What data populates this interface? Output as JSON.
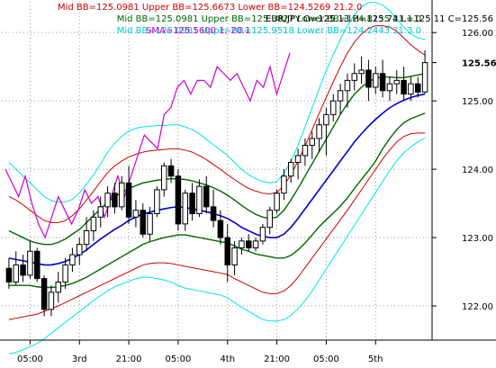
{
  "chart_data": {
    "type": "candlestick",
    "symbol": "EUR/JPY",
    "ohlc_label": "O=125.13 H=125.74 L=125.11 C=125.56",
    "header_lines": [
      {
        "text": "Mid BB=125.0981 Upper BB=125.6673 Lower BB=124.5269  21.2.0",
        "color": "#cc0000",
        "align": "left"
      },
      {
        "text": "Mid BB=125.0981 Upper BB=125.3827 Lower BB=124.8135  21.1.0",
        "color": "#006600",
        "align": "right"
      },
      {
        "text": "Mid BB=125.0981 Upper BB=125.9518 Lower BB=124.2443  21.3.0",
        "color": "#00cccc",
        "align": "right"
      },
      {
        "text": "SMA=125.5600  1,-20.1",
        "color": "#cc00cc",
        "align": "left"
      }
    ],
    "price_labels": [
      "126.00",
      "125.56",
      "125.00",
      "124.00",
      "123.00",
      "122.00"
    ],
    "time_labels": [
      "05:00",
      "3rd",
      "21:00",
      "05:00",
      "4th",
      "21:00",
      "05:00",
      "5th"
    ],
    "ylim": [
      121.5,
      126.45
    ],
    "current_price": 125.56,
    "gridlines": true,
    "colors": {
      "mid": "#0000cc",
      "upper_lower_2": "#cc0000",
      "upper_lower_1": "#006600",
      "upper_lower_3": "#00e5e5",
      "sma": "#cc00cc",
      "candle": "#000000"
    },
    "candles": [
      {
        "o": 122.55,
        "h": 122.7,
        "l": 122.25,
        "c": 122.35
      },
      {
        "o": 122.35,
        "h": 122.8,
        "l": 122.3,
        "c": 122.6
      },
      {
        "o": 122.6,
        "h": 122.75,
        "l": 122.35,
        "c": 122.45
      },
      {
        "o": 122.45,
        "h": 122.95,
        "l": 122.4,
        "c": 122.8
      },
      {
        "o": 122.8,
        "h": 122.85,
        "l": 122.35,
        "c": 122.4
      },
      {
        "o": 122.4,
        "h": 122.45,
        "l": 121.85,
        "c": 121.95
      },
      {
        "o": 121.95,
        "h": 122.3,
        "l": 121.85,
        "c": 122.2
      },
      {
        "o": 122.2,
        "h": 122.5,
        "l": 122.05,
        "c": 122.35
      },
      {
        "o": 122.35,
        "h": 122.7,
        "l": 122.25,
        "c": 122.6
      },
      {
        "o": 122.6,
        "h": 122.85,
        "l": 122.5,
        "c": 122.75
      },
      {
        "o": 122.75,
        "h": 123.0,
        "l": 122.6,
        "c": 122.9
      },
      {
        "o": 122.9,
        "h": 123.3,
        "l": 122.8,
        "c": 123.1
      },
      {
        "o": 123.1,
        "h": 123.4,
        "l": 122.95,
        "c": 123.3
      },
      {
        "o": 123.3,
        "h": 123.6,
        "l": 123.15,
        "c": 123.45
      },
      {
        "o": 123.45,
        "h": 123.75,
        "l": 123.3,
        "c": 123.65
      },
      {
        "o": 123.65,
        "h": 123.8,
        "l": 123.35,
        "c": 123.45
      },
      {
        "o": 123.45,
        "h": 123.9,
        "l": 123.4,
        "c": 123.8
      },
      {
        "o": 123.8,
        "h": 124.05,
        "l": 123.2,
        "c": 123.3
      },
      {
        "o": 123.3,
        "h": 123.55,
        "l": 123.15,
        "c": 123.4
      },
      {
        "o": 123.4,
        "h": 123.5,
        "l": 123.0,
        "c": 123.05
      },
      {
        "o": 123.05,
        "h": 123.45,
        "l": 122.95,
        "c": 123.35
      },
      {
        "o": 123.35,
        "h": 123.75,
        "l": 123.3,
        "c": 123.7
      },
      {
        "o": 123.7,
        "h": 124.1,
        "l": 123.6,
        "c": 124.05
      },
      {
        "o": 124.05,
        "h": 124.15,
        "l": 123.8,
        "c": 123.9
      },
      {
        "o": 123.9,
        "h": 124.0,
        "l": 123.1,
        "c": 123.2
      },
      {
        "o": 123.2,
        "h": 123.7,
        "l": 123.1,
        "c": 123.65
      },
      {
        "o": 123.65,
        "h": 123.8,
        "l": 123.25,
        "c": 123.35
      },
      {
        "o": 123.35,
        "h": 123.85,
        "l": 123.3,
        "c": 123.75
      },
      {
        "o": 123.75,
        "h": 123.9,
        "l": 123.35,
        "c": 123.45
      },
      {
        "o": 123.45,
        "h": 123.7,
        "l": 123.15,
        "c": 123.25
      },
      {
        "o": 123.25,
        "h": 123.4,
        "l": 122.9,
        "c": 123.0
      },
      {
        "o": 123.0,
        "h": 123.2,
        "l": 122.35,
        "c": 122.6
      },
      {
        "o": 122.6,
        "h": 122.95,
        "l": 122.45,
        "c": 122.85
      },
      {
        "o": 122.85,
        "h": 123.0,
        "l": 122.75,
        "c": 122.95
      },
      {
        "o": 122.95,
        "h": 123.05,
        "l": 122.8,
        "c": 122.85
      },
      {
        "o": 122.85,
        "h": 123.0,
        "l": 122.8,
        "c": 122.95
      },
      {
        "o": 122.95,
        "h": 123.2,
        "l": 122.9,
        "c": 123.15
      },
      {
        "o": 123.15,
        "h": 123.45,
        "l": 123.05,
        "c": 123.4
      },
      {
        "o": 123.4,
        "h": 123.7,
        "l": 123.35,
        "c": 123.65
      },
      {
        "o": 123.65,
        "h": 124.0,
        "l": 123.55,
        "c": 123.9
      },
      {
        "o": 123.9,
        "h": 124.15,
        "l": 123.8,
        "c": 124.1
      },
      {
        "o": 124.1,
        "h": 124.3,
        "l": 123.85,
        "c": 124.2
      },
      {
        "o": 124.2,
        "h": 124.45,
        "l": 124.05,
        "c": 124.35
      },
      {
        "o": 124.35,
        "h": 124.55,
        "l": 124.15,
        "c": 124.45
      },
      {
        "o": 124.45,
        "h": 124.75,
        "l": 124.25,
        "c": 124.65
      },
      {
        "o": 124.65,
        "h": 124.9,
        "l": 124.2,
        "c": 124.8
      },
      {
        "o": 124.8,
        "h": 125.1,
        "l": 124.7,
        "c": 125.0
      },
      {
        "o": 125.0,
        "h": 125.25,
        "l": 124.8,
        "c": 125.15
      },
      {
        "o": 125.15,
        "h": 125.4,
        "l": 124.9,
        "c": 125.3
      },
      {
        "o": 125.3,
        "h": 125.55,
        "l": 125.15,
        "c": 125.4
      },
      {
        "o": 125.4,
        "h": 125.65,
        "l": 125.25,
        "c": 125.45
      },
      {
        "o": 125.45,
        "h": 125.6,
        "l": 125.0,
        "c": 125.2
      },
      {
        "o": 125.2,
        "h": 125.5,
        "l": 125.1,
        "c": 125.4
      },
      {
        "o": 125.4,
        "h": 125.6,
        "l": 125.05,
        "c": 125.15
      },
      {
        "o": 125.15,
        "h": 125.35,
        "l": 125.0,
        "c": 125.25
      },
      {
        "o": 125.25,
        "h": 125.45,
        "l": 125.1,
        "c": 125.3
      },
      {
        "o": 125.3,
        "h": 125.5,
        "l": 125.0,
        "c": 125.1
      },
      {
        "o": 125.1,
        "h": 125.35,
        "l": 125.0,
        "c": 125.25
      },
      {
        "o": 125.25,
        "h": 125.35,
        "l": 125.05,
        "c": 125.13
      },
      {
        "o": 125.13,
        "h": 125.74,
        "l": 125.11,
        "c": 125.56
      }
    ],
    "mid": [
      122.7,
      122.68,
      122.66,
      122.64,
      122.62,
      122.6,
      122.6,
      122.62,
      122.65,
      122.7,
      122.75,
      122.82,
      122.9,
      122.98,
      123.05,
      123.12,
      123.18,
      123.25,
      123.3,
      123.35,
      123.37,
      123.4,
      123.42,
      123.44,
      123.45,
      123.44,
      123.42,
      123.4,
      123.38,
      123.35,
      123.32,
      123.28,
      123.22,
      123.15,
      123.1,
      123.05,
      123.02,
      123.0,
      123.0,
      123.05,
      123.15,
      123.28,
      123.42,
      123.56,
      123.7,
      123.84,
      123.98,
      124.12,
      124.26,
      124.4,
      124.52,
      124.63,
      124.73,
      124.82,
      124.9,
      124.96,
      125.01,
      125.05,
      125.08,
      125.1
    ],
    "upper1": [
      123.1,
      123.05,
      123.0,
      122.95,
      122.92,
      122.9,
      122.9,
      122.93,
      122.98,
      123.05,
      123.12,
      123.22,
      123.32,
      123.42,
      123.52,
      123.6,
      123.66,
      123.72,
      123.76,
      123.8,
      123.82,
      123.84,
      123.85,
      123.86,
      123.86,
      123.85,
      123.83,
      123.8,
      123.77,
      123.73,
      123.68,
      123.62,
      123.55,
      123.47,
      123.4,
      123.34,
      123.3,
      123.28,
      123.3,
      123.4,
      123.55,
      123.72,
      123.9,
      124.08,
      124.26,
      124.44,
      124.62,
      124.8,
      124.96,
      125.1,
      125.2,
      125.28,
      125.33,
      125.35,
      125.35,
      125.34,
      125.34,
      125.36,
      125.38,
      125.4
    ],
    "lower1": [
      122.3,
      122.3,
      122.3,
      122.3,
      122.28,
      122.27,
      122.27,
      122.28,
      122.3,
      122.33,
      122.37,
      122.42,
      122.48,
      122.54,
      122.6,
      122.66,
      122.72,
      122.78,
      122.84,
      122.9,
      122.94,
      122.97,
      123.0,
      123.02,
      123.04,
      123.04,
      123.02,
      123.0,
      122.98,
      122.96,
      122.94,
      122.92,
      122.88,
      122.83,
      122.8,
      122.76,
      122.74,
      122.72,
      122.7,
      122.7,
      122.74,
      122.82,
      122.92,
      123.04,
      123.16,
      123.26,
      123.36,
      123.46,
      123.58,
      123.72,
      123.85,
      123.98,
      124.12,
      124.3,
      124.45,
      124.58,
      124.68,
      124.74,
      124.78,
      124.82
    ],
    "upper2": [
      123.6,
      123.55,
      123.48,
      123.4,
      123.32,
      123.25,
      123.22,
      123.22,
      123.25,
      123.32,
      123.42,
      123.55,
      123.68,
      123.82,
      123.95,
      124.05,
      124.12,
      124.18,
      124.22,
      124.25,
      124.27,
      124.28,
      124.29,
      124.3,
      124.3,
      124.28,
      124.25,
      124.2,
      124.14,
      124.07,
      124.0,
      123.92,
      123.85,
      123.78,
      123.72,
      123.68,
      123.65,
      123.64,
      123.66,
      123.76,
      123.92,
      124.12,
      124.34,
      124.58,
      124.82,
      125.05,
      125.28,
      125.5,
      125.7,
      125.86,
      125.98,
      126.06,
      126.1,
      126.1,
      126.08,
      126.02,
      125.92,
      125.82,
      125.74,
      125.67
    ],
    "lower2": [
      121.8,
      121.82,
      121.84,
      121.86,
      121.88,
      121.92,
      121.96,
      122.0,
      122.05,
      122.1,
      122.15,
      122.2,
      122.25,
      122.3,
      122.35,
      122.4,
      122.45,
      122.5,
      122.55,
      122.6,
      122.62,
      122.63,
      122.63,
      122.62,
      122.6,
      122.58,
      122.56,
      122.54,
      122.52,
      122.5,
      122.48,
      122.46,
      122.4,
      122.35,
      122.3,
      122.25,
      122.2,
      122.18,
      122.18,
      122.22,
      122.3,
      122.42,
      122.56,
      122.7,
      122.84,
      122.98,
      123.12,
      123.26,
      123.4,
      123.55,
      123.7,
      123.85,
      124.0,
      124.15,
      124.28,
      124.4,
      124.48,
      124.52,
      124.53,
      124.53
    ],
    "upper3": [
      124.1,
      124.0,
      123.9,
      123.8,
      123.7,
      123.6,
      123.54,
      123.52,
      123.52,
      123.56,
      123.65,
      123.78,
      123.92,
      124.08,
      124.25,
      124.38,
      124.48,
      124.56,
      124.6,
      124.62,
      124.63,
      124.64,
      124.64,
      124.65,
      124.65,
      124.62,
      124.58,
      124.52,
      124.44,
      124.36,
      124.28,
      124.2,
      124.1,
      124.0,
      123.92,
      123.86,
      123.82,
      123.8,
      123.82,
      123.94,
      124.12,
      124.35,
      124.62,
      124.9,
      125.18,
      125.44,
      125.68,
      125.9,
      126.1,
      126.26,
      126.38,
      126.44,
      126.44,
      126.4,
      126.32,
      126.2,
      126.08,
      125.98,
      125.92,
      125.9
    ],
    "lower3": [
      121.3,
      121.32,
      121.36,
      121.4,
      121.45,
      121.52,
      121.6,
      121.68,
      121.76,
      121.84,
      121.92,
      122.0,
      122.08,
      122.15,
      122.22,
      122.28,
      122.32,
      122.36,
      122.4,
      122.42,
      122.42,
      122.4,
      122.38,
      122.35,
      122.3,
      122.26,
      122.24,
      122.22,
      122.2,
      122.18,
      122.16,
      122.12,
      122.05,
      121.98,
      121.92,
      121.86,
      121.8,
      121.78,
      121.78,
      121.8,
      121.86,
      121.96,
      122.08,
      122.22,
      122.38,
      122.54,
      122.7,
      122.86,
      123.02,
      123.18,
      123.34,
      123.5,
      123.66,
      123.82,
      123.98,
      124.12,
      124.24,
      124.33,
      124.4,
      124.46
    ],
    "sma_points": [
      [
        0,
        124.0
      ],
      [
        1,
        123.8
      ],
      [
        2,
        123.6
      ],
      [
        3,
        123.9
      ],
      [
        4,
        123.5
      ],
      [
        5,
        123.2
      ],
      [
        6,
        123.0
      ],
      [
        7,
        123.3
      ],
      [
        8,
        123.6
      ],
      [
        9,
        123.4
      ],
      [
        10,
        123.2
      ],
      [
        11,
        123.4
      ],
      [
        12,
        123.7
      ],
      [
        13,
        123.5
      ],
      [
        14,
        123.6
      ],
      [
        15,
        123.3
      ],
      [
        16,
        123.6
      ],
      [
        17,
        123.9
      ],
      [
        18,
        123.6
      ],
      [
        19,
        123.9
      ],
      [
        20,
        124.2
      ],
      [
        21,
        124.5
      ],
      [
        22,
        124.4
      ],
      [
        23,
        124.3
      ],
      [
        24,
        124.8
      ],
      [
        25,
        124.9
      ],
      [
        26,
        125.2
      ],
      [
        27,
        125.3
      ],
      [
        28,
        125.1
      ],
      [
        29,
        125.3
      ],
      [
        30,
        125.3
      ],
      [
        31,
        125.2
      ],
      [
        32,
        125.5
      ],
      [
        33,
        125.4
      ],
      [
        34,
        125.3
      ],
      [
        35,
        125.4
      ],
      [
        36,
        125.2
      ],
      [
        37,
        125.0
      ],
      [
        38,
        125.3
      ],
      [
        39,
        125.2
      ],
      [
        40,
        125.5
      ],
      [
        41,
        125.1
      ],
      [
        42,
        125.4
      ],
      [
        43,
        125.7
      ]
    ]
  }
}
